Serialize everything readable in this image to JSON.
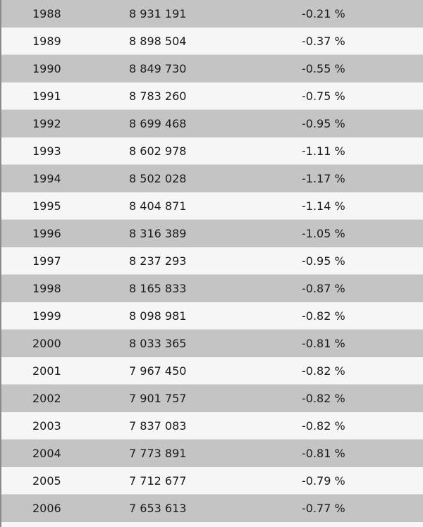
{
  "rows": [
    {
      "year": "1988",
      "population": "8 931 191",
      "change": "-0.21 %"
    },
    {
      "year": "1989",
      "population": "8 898 504",
      "change": "-0.37 %"
    },
    {
      "year": "1990",
      "population": "8 849 730",
      "change": "-0.55 %"
    },
    {
      "year": "1991",
      "population": "8 783 260",
      "change": "-0.75 %"
    },
    {
      "year": "1992",
      "population": "8 699 468",
      "change": "-0.95 %"
    },
    {
      "year": "1993",
      "population": "8 602 978",
      "change": "-1.11 %"
    },
    {
      "year": "1994",
      "population": "8 502 028",
      "change": "-1.17 %"
    },
    {
      "year": "1995",
      "population": "8 404 871",
      "change": "-1.14 %"
    },
    {
      "year": "1996",
      "population": "8 316 389",
      "change": "-1.05 %"
    },
    {
      "year": "1997",
      "population": "8 237 293",
      "change": "-0.95 %"
    },
    {
      "year": "1998",
      "population": "8 165 833",
      "change": "-0.87 %"
    },
    {
      "year": "1999",
      "population": "8 098 981",
      "change": "-0.82 %"
    },
    {
      "year": "2000",
      "population": "8 033 365",
      "change": "-0.81 %"
    },
    {
      "year": "2001",
      "population": "7 967 450",
      "change": "-0.82 %"
    },
    {
      "year": "2002",
      "population": "7 901 757",
      "change": "-0.82 %"
    },
    {
      "year": "2003",
      "population": "7 837 083",
      "change": "-0.82 %"
    },
    {
      "year": "2004",
      "population": "7 773 891",
      "change": "-0.81 %"
    },
    {
      "year": "2005",
      "population": "7 712 677",
      "change": "-0.79 %"
    },
    {
      "year": "2006",
      "population": "7 653 613",
      "change": "-0.77 %"
    }
  ],
  "colors": {
    "row_shade": "#c4c4c4",
    "row_light": "#f6f6f6",
    "text": "#1a1a1a"
  }
}
